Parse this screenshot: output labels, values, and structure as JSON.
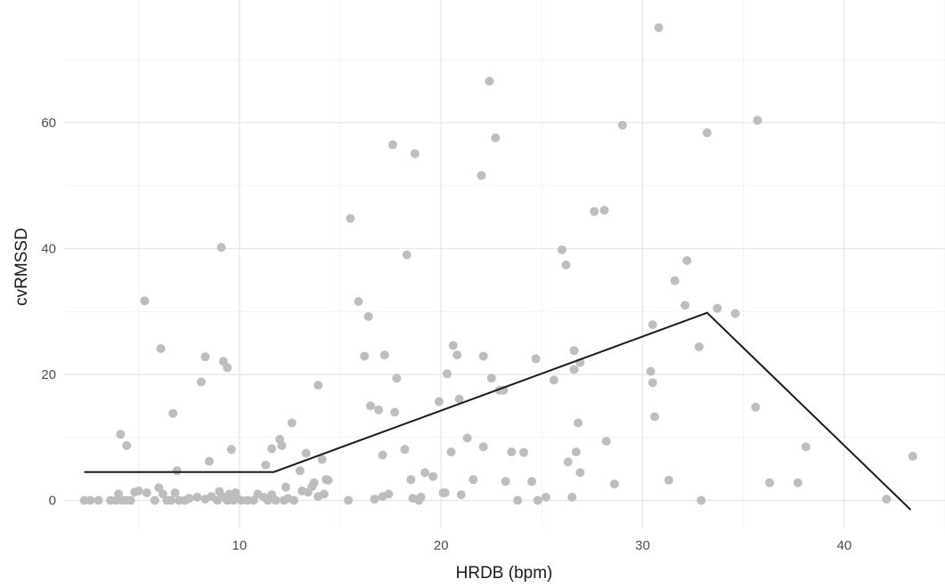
{
  "chart_data": {
    "type": "scatter",
    "title": "",
    "xlabel": "HRDB (bpm)",
    "ylabel": "cvRMSSD",
    "xlim": [
      1.3,
      45
    ],
    "ylim": [
      -4.3,
      79.5
    ],
    "x_ticks": [
      10,
      20,
      30,
      40
    ],
    "y_ticks": [
      0,
      20,
      40,
      60
    ],
    "grid": true,
    "legend": "none",
    "colors": {
      "points": "#bdbdbd",
      "line": "#1a1a1a",
      "grid_major": "#e6e6e6",
      "grid_minor": "#f2f2f2"
    },
    "points": [
      [
        2.3,
        0
      ],
      [
        2.6,
        0
      ],
      [
        3.0,
        0
      ],
      [
        3.6,
        0
      ],
      [
        3.9,
        0
      ],
      [
        4.0,
        1.0
      ],
      [
        4.2,
        0
      ],
      [
        4.4,
        0
      ],
      [
        4.6,
        0
      ],
      [
        4.8,
        1.3
      ],
      [
        5.0,
        1.5
      ],
      [
        5.4,
        1.2
      ],
      [
        5.8,
        0
      ],
      [
        6.0,
        2.0
      ],
      [
        6.2,
        1.0
      ],
      [
        6.4,
        0
      ],
      [
        6.6,
        0
      ],
      [
        6.8,
        1.2
      ],
      [
        7.0,
        0
      ],
      [
        7.3,
        0
      ],
      [
        7.5,
        0.3
      ],
      [
        7.9,
        0.5
      ],
      [
        8.3,
        0.2
      ],
      [
        8.6,
        0.6
      ],
      [
        8.9,
        0
      ],
      [
        9.0,
        1.4
      ],
      [
        9.2,
        0.5
      ],
      [
        9.4,
        0
      ],
      [
        9.5,
        1.0
      ],
      [
        9.6,
        0.8
      ],
      [
        9.7,
        0
      ],
      [
        9.8,
        1.2
      ],
      [
        9.9,
        0.3
      ],
      [
        10.1,
        0
      ],
      [
        10.4,
        0
      ],
      [
        10.7,
        0
      ],
      [
        10.9,
        1.0
      ],
      [
        11.2,
        0.5
      ],
      [
        11.4,
        0
      ],
      [
        11.6,
        0.9
      ],
      [
        11.8,
        0
      ],
      [
        12.2,
        0
      ],
      [
        12.4,
        0.3
      ],
      [
        12.7,
        0
      ],
      [
        13.1,
        1.5
      ],
      [
        13.4,
        1.3
      ],
      [
        13.6,
        2.2
      ],
      [
        13.9,
        0.6
      ],
      [
        14.2,
        1.0
      ],
      [
        14.4,
        3.2
      ],
      [
        5.3,
        31.7
      ],
      [
        6.1,
        24.1
      ],
      [
        6.7,
        13.8
      ],
      [
        6.9,
        4.7
      ],
      [
        8.1,
        18.8
      ],
      [
        8.3,
        22.8
      ],
      [
        8.5,
        6.2
      ],
      [
        9.1,
        40.2
      ],
      [
        9.2,
        22.1
      ],
      [
        9.4,
        21.1
      ],
      [
        9.6,
        8.1
      ],
      [
        4.1,
        10.5
      ],
      [
        4.4,
        8.7
      ],
      [
        11.3,
        5.6
      ],
      [
        11.6,
        8.2
      ],
      [
        12.0,
        9.7
      ],
      [
        12.1,
        8.7
      ],
      [
        12.3,
        2.1
      ],
      [
        12.6,
        12.3
      ],
      [
        13.0,
        4.7
      ],
      [
        13.3,
        7.5
      ],
      [
        13.7,
        2.8
      ],
      [
        13.9,
        18.3
      ],
      [
        14.1,
        6.5
      ],
      [
        14.3,
        3.3
      ],
      [
        15.4,
        0
      ],
      [
        15.5,
        44.8
      ],
      [
        15.9,
        31.6
      ],
      [
        16.2,
        22.9
      ],
      [
        16.4,
        29.2
      ],
      [
        16.5,
        15.0
      ],
      [
        16.9,
        14.4
      ],
      [
        17.1,
        7.2
      ],
      [
        17.2,
        23.1
      ],
      [
        17.4,
        1.0
      ],
      [
        17.6,
        56.5
      ],
      [
        17.7,
        14.0
      ],
      [
        17.8,
        19.4
      ],
      [
        18.2,
        8.1
      ],
      [
        18.3,
        39.0
      ],
      [
        18.5,
        3.3
      ],
      [
        18.7,
        55.1
      ],
      [
        18.9,
        0
      ],
      [
        19.2,
        4.4
      ],
      [
        19.6,
        3.8
      ],
      [
        19.9,
        15.7
      ],
      [
        20.2,
        1.2
      ],
      [
        20.3,
        20.1
      ],
      [
        20.5,
        7.7
      ],
      [
        20.6,
        24.6
      ],
      [
        20.8,
        23.1
      ],
      [
        20.9,
        16.1
      ],
      [
        21.3,
        9.9
      ],
      [
        21.6,
        3.3
      ],
      [
        22.0,
        51.6
      ],
      [
        22.1,
        22.9
      ],
      [
        22.1,
        8.5
      ],
      [
        22.4,
        66.6
      ],
      [
        22.5,
        19.4
      ],
      [
        22.7,
        57.6
      ],
      [
        22.9,
        17.5
      ],
      [
        23.1,
        17.5
      ],
      [
        23.2,
        3.0
      ],
      [
        23.5,
        7.7
      ],
      [
        23.8,
        0
      ],
      [
        24.1,
        7.6
      ],
      [
        24.5,
        3.0
      ],
      [
        24.7,
        22.5
      ],
      [
        24.8,
        0
      ],
      [
        25.2,
        0.5
      ],
      [
        25.6,
        19.1
      ],
      [
        26.0,
        39.8
      ],
      [
        26.2,
        37.4
      ],
      [
        26.3,
        6.1
      ],
      [
        26.5,
        0.5
      ],
      [
        26.6,
        20.8
      ],
      [
        26.6,
        23.8
      ],
      [
        26.7,
        7.7
      ],
      [
        26.8,
        12.3
      ],
      [
        26.9,
        21.9
      ],
      [
        26.9,
        4.4
      ],
      [
        27.6,
        45.9
      ],
      [
        28.1,
        46.1
      ],
      [
        28.2,
        9.4
      ],
      [
        28.6,
        2.6
      ],
      [
        29.0,
        59.6
      ],
      [
        30.4,
        20.5
      ],
      [
        30.5,
        27.9
      ],
      [
        30.5,
        18.7
      ],
      [
        30.6,
        13.3
      ],
      [
        30.8,
        75.1
      ],
      [
        31.3,
        3.2
      ],
      [
        31.6,
        34.9
      ],
      [
        32.1,
        31.0
      ],
      [
        32.2,
        38.1
      ],
      [
        32.8,
        24.4
      ],
      [
        32.9,
        0
      ],
      [
        33.2,
        58.4
      ],
      [
        33.7,
        30.5
      ],
      [
        34.6,
        29.7
      ],
      [
        35.6,
        14.8
      ],
      [
        35.7,
        60.4
      ],
      [
        36.3,
        2.8
      ],
      [
        37.7,
        2.8
      ],
      [
        38.1,
        8.5
      ],
      [
        42.1,
        0.2
      ],
      [
        43.4,
        7.0
      ],
      [
        17.1,
        0.6
      ],
      [
        18.6,
        0.3
      ],
      [
        21.0,
        0.9
      ],
      [
        16.7,
        0.2
      ],
      [
        19.0,
        0.5
      ],
      [
        20.1,
        1.2
      ]
    ],
    "fit_line": {
      "x": [
        2.3,
        11.7,
        33.2,
        43.3
      ],
      "y": [
        4.5,
        4.5,
        29.8,
        -1.5
      ]
    }
  }
}
